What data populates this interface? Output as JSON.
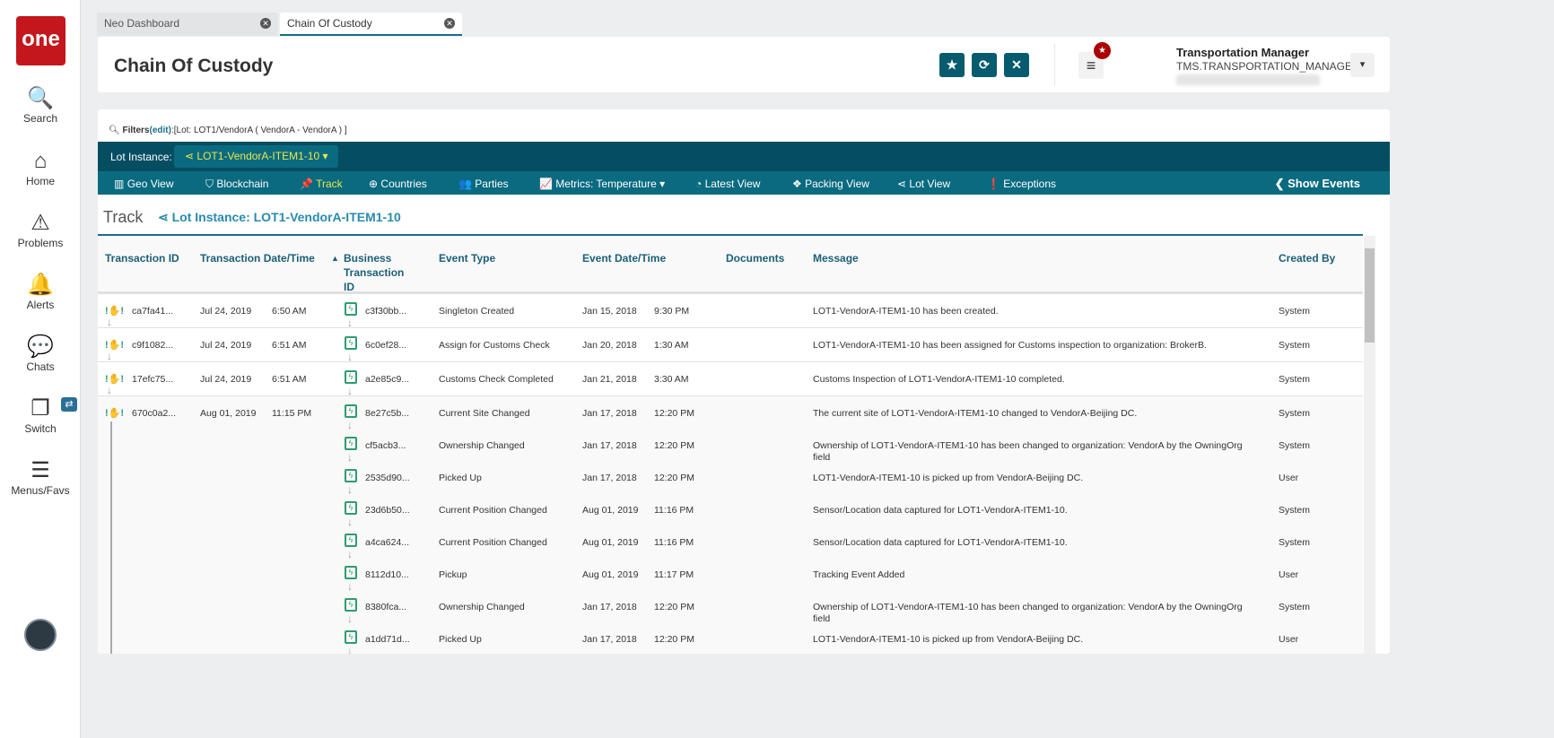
{
  "sidebar": {
    "logo": "one",
    "items": [
      {
        "label": "Search",
        "icon": "search-icon",
        "glyph": "🔍"
      },
      {
        "label": "Home",
        "icon": "home-icon",
        "glyph": "⌂"
      },
      {
        "label": "Problems",
        "icon": "warning-icon",
        "glyph": "⚠"
      },
      {
        "label": "Alerts",
        "icon": "bell-icon",
        "glyph": "🔔"
      },
      {
        "label": "Chats",
        "icon": "chat-icon",
        "glyph": "💬"
      },
      {
        "label": "Switch",
        "icon": "switch-icon",
        "glyph": "❐"
      },
      {
        "label": "Menus/Favs",
        "icon": "menu-icon",
        "glyph": "☰"
      }
    ],
    "switch_badge": "⇄"
  },
  "tabs": [
    {
      "label": "Neo Dashboard"
    },
    {
      "label": "Chain Of Custody"
    }
  ],
  "header": {
    "title": "Chain Of Custody",
    "user_name": "Transportation Manager",
    "user_role": "TMS.TRANSPORTATION_MANAGER"
  },
  "filters": {
    "label": "Filters",
    "edit": "(edit)",
    "value": ":[Lot: LOT1/VendorA ( VendorA - VendorA ) ]"
  },
  "lot": {
    "label": "Lot Instance:",
    "value": "LOT1-VendorA-ITEM1-10"
  },
  "nav": [
    {
      "label": "Geo View",
      "glyph": "▥"
    },
    {
      "label": "Blockchain",
      "glyph": "⛉"
    },
    {
      "label": "Track",
      "glyph": "📌"
    },
    {
      "label": "Countries",
      "glyph": "⊕"
    },
    {
      "label": "Parties",
      "glyph": "👥"
    },
    {
      "label": "Metrics: Temperature ▾",
      "glyph": "📈"
    },
    {
      "label": "Latest View",
      "glyph": "◔"
    },
    {
      "label": "Packing View",
      "glyph": "❖"
    },
    {
      "label": "Lot View",
      "glyph": "⋖"
    },
    {
      "label": "Exceptions",
      "glyph": "❗"
    }
  ],
  "show_events": "Show Events",
  "track": {
    "title": "Track",
    "lot_title": "Lot Instance: LOT1-VendorA-ITEM1-10"
  },
  "columns": [
    "Transaction ID",
    "Transaction Date/Time",
    "Business Transaction ID",
    "Event Type",
    "Event Date/Time",
    "Documents",
    "Message",
    "Created By"
  ],
  "rows": [
    {
      "tx": "ca7fa41...",
      "tx_date": "Jul 24, 2019",
      "tx_time": "6:50 AM",
      "events": [
        {
          "biz": "c3f30bb...",
          "type": "Singleton Created",
          "date": "Jan 15, 2018",
          "time": "9:30 PM",
          "msg": "LOT1-VendorA-ITEM1-10 has been created.",
          "by": "System"
        }
      ]
    },
    {
      "tx": "c9f1082...",
      "tx_date": "Jul 24, 2019",
      "tx_time": "6:51 AM",
      "events": [
        {
          "biz": "6c0ef28...",
          "type": "Assign for Customs Check",
          "date": "Jan 20, 2018",
          "time": "1:30 AM",
          "msg": "LOT1-VendorA-ITEM1-10 has been assigned for Customs inspection to organization: BrokerB.",
          "by": "System"
        }
      ]
    },
    {
      "tx": "17efc75...",
      "tx_date": "Jul 24, 2019",
      "tx_time": "6:51 AM",
      "events": [
        {
          "biz": "a2e85c9...",
          "type": "Customs Check Completed",
          "date": "Jan 21, 2018",
          "time": "3:30 AM",
          "msg": "Customs Inspection of LOT1-VendorA-ITEM1-10 completed.",
          "by": "System"
        }
      ]
    },
    {
      "tx": "670c0a2...",
      "tx_date": "Aug 01, 2019",
      "tx_time": "11:15 PM",
      "events": [
        {
          "biz": "8e27c5b...",
          "type": "Current Site Changed",
          "date": "Jan 17, 2018",
          "time": "12:20 PM",
          "msg": "The current site of LOT1-VendorA-ITEM1-10 changed to VendorA-Beijing DC.",
          "by": "System"
        },
        {
          "biz": "cf5acb3...",
          "type": "Ownership Changed",
          "date": "Jan 17, 2018",
          "time": "12:20 PM",
          "msg": "Ownership of LOT1-VendorA-ITEM1-10 has been changed to organization: VendorA by the OwningOrg field",
          "by": "System"
        },
        {
          "biz": "2535d90...",
          "type": "Picked Up",
          "date": "Jan 17, 2018",
          "time": "12:20 PM",
          "msg": "LOT1-VendorA-ITEM1-10 is picked up from VendorA-Beijing DC.",
          "by": "User"
        },
        {
          "biz": "23d6b50...",
          "type": "Current Position Changed",
          "date": "Aug 01, 2019",
          "time": "11:16 PM",
          "msg": "Sensor/Location data captured for LOT1-VendorA-ITEM1-10.",
          "by": "System"
        },
        {
          "biz": "a4ca624...",
          "type": "Current Position Changed",
          "date": "Aug 01, 2019",
          "time": "11:16 PM",
          "msg": "Sensor/Location data captured for LOT1-VendorA-ITEM1-10.",
          "by": "System"
        },
        {
          "biz": "8112d10...",
          "type": "Pickup",
          "date": "Aug 01, 2019",
          "time": "11:17 PM",
          "msg": "Tracking Event Added",
          "by": "User"
        },
        {
          "biz": "8380fca...",
          "type": "Ownership Changed",
          "date": "Jan 17, 2018",
          "time": "12:20 PM",
          "msg": "Ownership of LOT1-VendorA-ITEM1-10 has been changed to organization: VendorA by the OwningOrg field",
          "by": "System"
        },
        {
          "biz": "a1dd71d...",
          "type": "Picked Up",
          "date": "Jan 17, 2018",
          "time": "12:20 PM",
          "msg": "LOT1-VendorA-ITEM1-10 is picked up from VendorA-Beijing DC.",
          "by": "User"
        }
      ]
    }
  ]
}
